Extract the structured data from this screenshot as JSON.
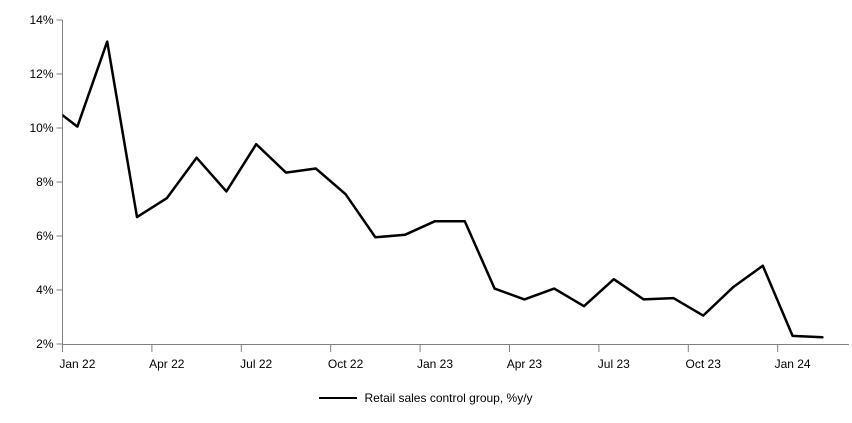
{
  "chart_data": {
    "type": "line",
    "title": "",
    "categories": [
      "Jan 22",
      "Feb 22",
      "Mar 22",
      "Apr 22",
      "May 22",
      "Jun 22",
      "Jul 22",
      "Aug 22",
      "Sep 22",
      "Oct 22",
      "Nov 22",
      "Dec 22",
      "Jan 23",
      "Feb 23",
      "Mar 23",
      "Apr 23",
      "May 23",
      "Jun 23",
      "Jul 23",
      "Aug 23",
      "Sep 23",
      "Oct 23",
      "Nov 23",
      "Dec 23",
      "Jan 24",
      "Feb 24"
    ],
    "series": [
      {
        "name": "Retail sales control group, %y/y",
        "color": "#000000",
        "values": [
          10.05,
          13.2,
          6.7,
          7.4,
          8.9,
          7.65,
          9.4,
          8.35,
          8.5,
          7.55,
          5.95,
          6.05,
          6.55,
          6.55,
          4.05,
          3.65,
          4.05,
          3.4,
          4.4,
          3.65,
          3.7,
          3.05,
          4.1,
          4.9,
          2.3,
          2.25
        ]
      }
    ],
    "clipped_leading_point": {
      "category": "Dec 21",
      "value": 10.9,
      "note": "line enters plot clipped at y-axis"
    },
    "x_tick_labels": [
      "Jan 22",
      "Apr 22",
      "Jul 22",
      "Oct 22",
      "Jan 23",
      "Apr 23",
      "Jul 23",
      "Oct 23",
      "Jan 24"
    ],
    "y_tick_labels": [
      "2%",
      "4%",
      "6%",
      "8%",
      "10%",
      "12%",
      "14%"
    ],
    "ylim": [
      2,
      14
    ],
    "y_tick_step": 2,
    "grid": false,
    "legend_position": "bottom-center",
    "axis_color": "#808080",
    "text_color": "#000000",
    "background_color": "#ffffff"
  }
}
